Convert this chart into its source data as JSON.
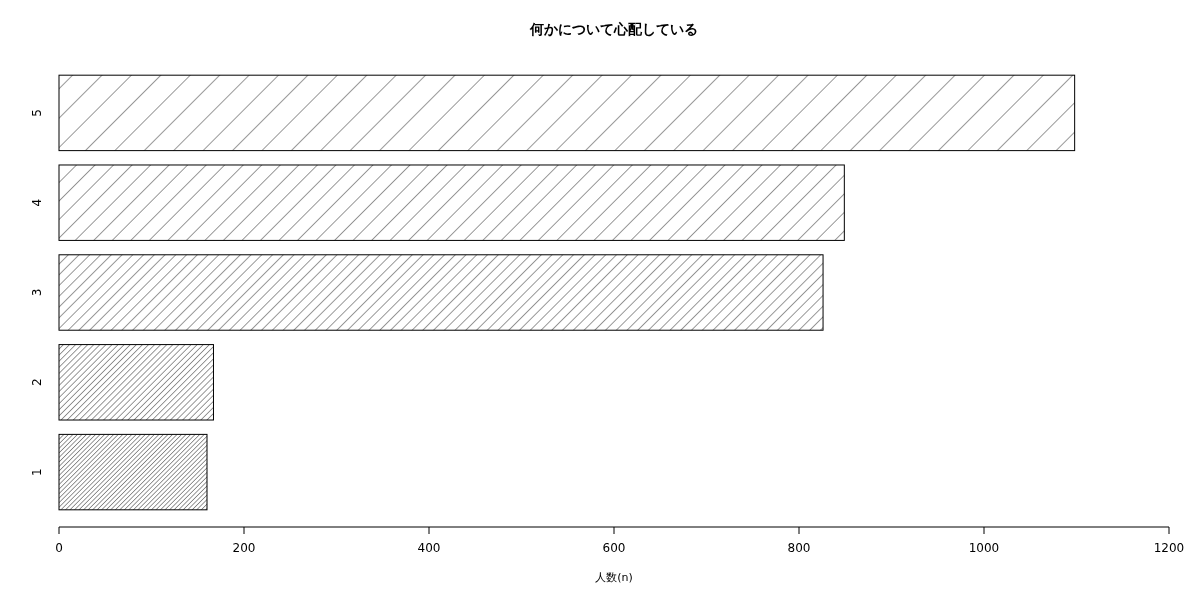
{
  "chart_data": {
    "type": "bar",
    "orientation": "horizontal",
    "title": "何かについて心配している",
    "xlabel": "人数(n)",
    "categories": [
      "5",
      "4",
      "3",
      "2",
      "1"
    ],
    "values": [
      1098,
      849,
      826,
      167,
      160
    ],
    "color": "#000000",
    "xlim": [
      0,
      1200
    ],
    "xticks": [
      0,
      200,
      400,
      600,
      800,
      1000,
      1200
    ],
    "grid": false
  }
}
